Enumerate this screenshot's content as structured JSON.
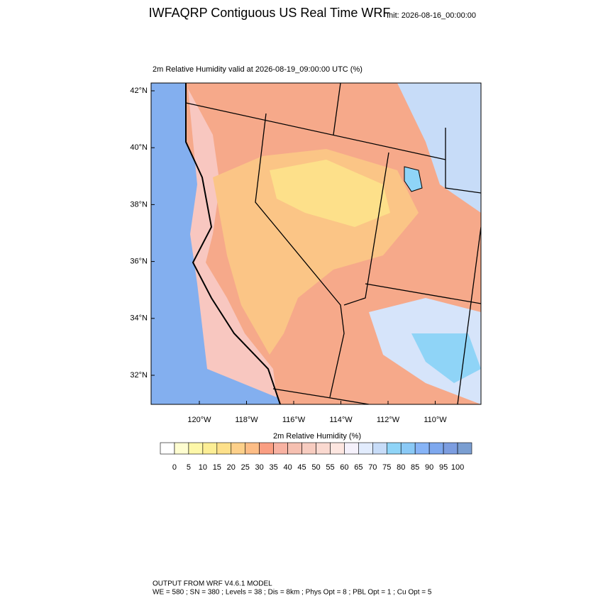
{
  "header": {
    "title": "IWFAQRP Contiguous US Real Time WRF",
    "init": "Init: 2026-08-16_00:00:00"
  },
  "map": {
    "subtitle": "2m Relative Humidity valid at 2026-08-19_09:00:00 UTC   (%)",
    "lat_labels": [
      "42°N",
      "40°N",
      "38°N",
      "36°N",
      "34°N",
      "32°N"
    ],
    "lon_labels": [
      "120°W",
      "118°W",
      "116°W",
      "114°W",
      "112°W",
      "110°W"
    ]
  },
  "colorbar": {
    "title": "2m Relative Humidity  (%)",
    "labels": [
      "0",
      "5",
      "10",
      "15",
      "20",
      "25",
      "30",
      "35",
      "40",
      "45",
      "50",
      "55",
      "60",
      "65",
      "70",
      "75",
      "80",
      "85",
      "90",
      "95",
      "100"
    ],
    "colors": [
      "#ffffff",
      "#fefdd0",
      "#fdf7a8",
      "#fcee95",
      "#fde08a",
      "#fdd08a",
      "#fdbd86",
      "#fa9e82",
      "#f8b2a2",
      "#f6c0b1",
      "#f7ccc0",
      "#fad9d0",
      "#fde6e0",
      "#f5f1fb",
      "#e2ecfd",
      "#c7dcf8",
      "#8fd4f7",
      "#8ac9f6",
      "#87b4f7",
      "#7ea8ee",
      "#7c9de0",
      "#7a9ed1"
    ]
  },
  "footer": {
    "line1": "OUTPUT FROM WRF V4.6.1 MODEL",
    "line2": "WE = 580 ; SN = 380 ; Levels = 38 ; Dis = 8km ; Phys Opt = 8 ; PBL Opt = 1 ; Cu Opt = 5"
  }
}
